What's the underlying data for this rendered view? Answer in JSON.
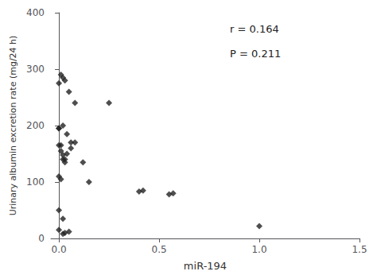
{
  "chart_data": {
    "type": "scatter",
    "x": [
      0.02,
      0.01,
      0.0,
      0.05,
      0.08,
      0.0,
      0.02,
      0.04,
      0.06,
      0.0,
      0.01,
      0.02,
      0.03,
      0.0,
      0.01,
      0.15,
      0.12,
      0.0,
      0.02,
      0.0,
      0.05,
      0.03,
      0.02,
      0.25,
      0.4,
      0.42,
      0.55,
      0.57,
      1.0,
      0.03,
      0.0,
      0.01,
      0.06,
      0.08,
      0.04,
      0.02,
      0.03
    ],
    "values": [
      285,
      290,
      275,
      260,
      240,
      195,
      200,
      185,
      170,
      165,
      155,
      148,
      140,
      110,
      105,
      100,
      135,
      50,
      35,
      15,
      12,
      10,
      8,
      240,
      83,
      85,
      78,
      80,
      22,
      280,
      195,
      165,
      160,
      170,
      150,
      140,
      135
    ],
    "xlabel": "miR-194",
    "ylabel": "Urinary albumin excretion rate (mg/24 h)",
    "annotations": [
      "r = 0.164",
      "P = 0.211"
    ],
    "xlim": [
      -0.04,
      1.5
    ],
    "ylim": [
      0,
      400
    ],
    "xticks": [
      {
        "value": 0,
        "label": "0.0"
      },
      0.5,
      {
        "value": 1,
        "label": "1.0"
      },
      1.5
    ],
    "yticks": [
      0,
      100,
      200,
      300,
      400
    ],
    "color": "#222222",
    "marker": "diamond",
    "grid": false
  }
}
